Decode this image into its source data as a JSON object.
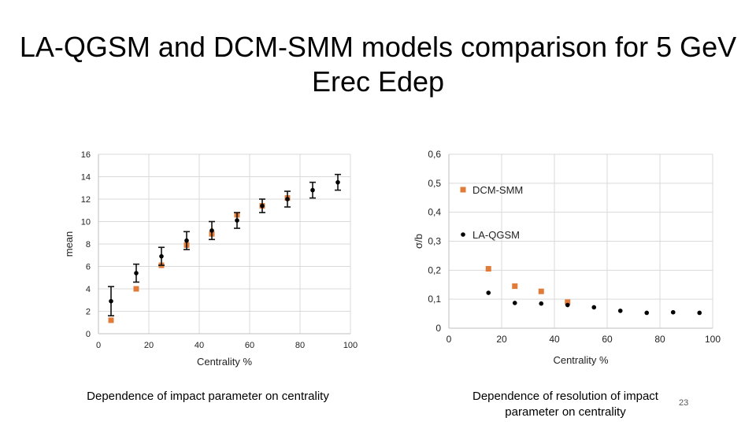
{
  "slide": {
    "title": "LA-QGSM and DCM-SMM models comparison for 5 GeV Erec Edep",
    "caption_left": "Dependence of impact parameter on centrality",
    "caption_right": "Dependence of resolution of impact parameter on centrality",
    "slide_number": "23"
  },
  "chart_data": [
    {
      "type": "scatter",
      "xlabel": "Centrality %",
      "ylabel": "mean",
      "xlim": [
        0,
        100
      ],
      "ylim": [
        0,
        16
      ],
      "xticks": [
        0,
        20,
        40,
        60,
        80,
        100
      ],
      "yticks": [
        0,
        2,
        4,
        6,
        8,
        10,
        12,
        14,
        16
      ],
      "grid": true,
      "series": [
        {
          "marker": "square",
          "color": "#E07B39",
          "x": [
            5,
            15,
            25,
            35,
            45,
            55,
            65,
            75
          ],
          "y": [
            1.2,
            4.0,
            6.1,
            7.9,
            8.9,
            10.6,
            11.4,
            12.1
          ]
        },
        {
          "marker": "dot",
          "color": "#000000",
          "x": [
            5,
            15,
            25,
            35,
            45,
            55,
            65,
            75,
            85,
            95
          ],
          "y": [
            2.9,
            5.4,
            6.9,
            8.3,
            9.2,
            10.1,
            11.4,
            12.0,
            12.8,
            13.5
          ],
          "yerr": [
            1.3,
            0.8,
            0.8,
            0.8,
            0.8,
            0.7,
            0.6,
            0.7,
            0.7,
            0.7
          ]
        }
      ]
    },
    {
      "type": "scatter",
      "xlabel": "Centrality %",
      "ylabel": "σ/b",
      "xlim": [
        0,
        100
      ],
      "ylim": [
        0,
        0.6
      ],
      "xticks": [
        0,
        20,
        40,
        60,
        80,
        100
      ],
      "yticks": [
        0,
        0.1,
        0.2,
        0.3,
        0.4,
        0.5,
        0.6
      ],
      "ytick_labels": [
        "0",
        "0,1",
        "0,2",
        "0,3",
        "0,4",
        "0,5",
        "0,6"
      ],
      "grid": true,
      "legend": "inside-top-left",
      "series": [
        {
          "name": "DCM-SMM",
          "marker": "square",
          "color": "#E07B39",
          "x": [
            15,
            25,
            35,
            45
          ],
          "y": [
            0.205,
            0.145,
            0.127,
            0.09
          ]
        },
        {
          "name": "LA-QGSM",
          "marker": "dot",
          "color": "#000000",
          "x": [
            15,
            25,
            35,
            45,
            55,
            65,
            75,
            85,
            95
          ],
          "y": [
            0.122,
            0.087,
            0.085,
            0.08,
            0.072,
            0.06,
            0.053,
            0.055,
            0.053
          ]
        }
      ]
    }
  ]
}
